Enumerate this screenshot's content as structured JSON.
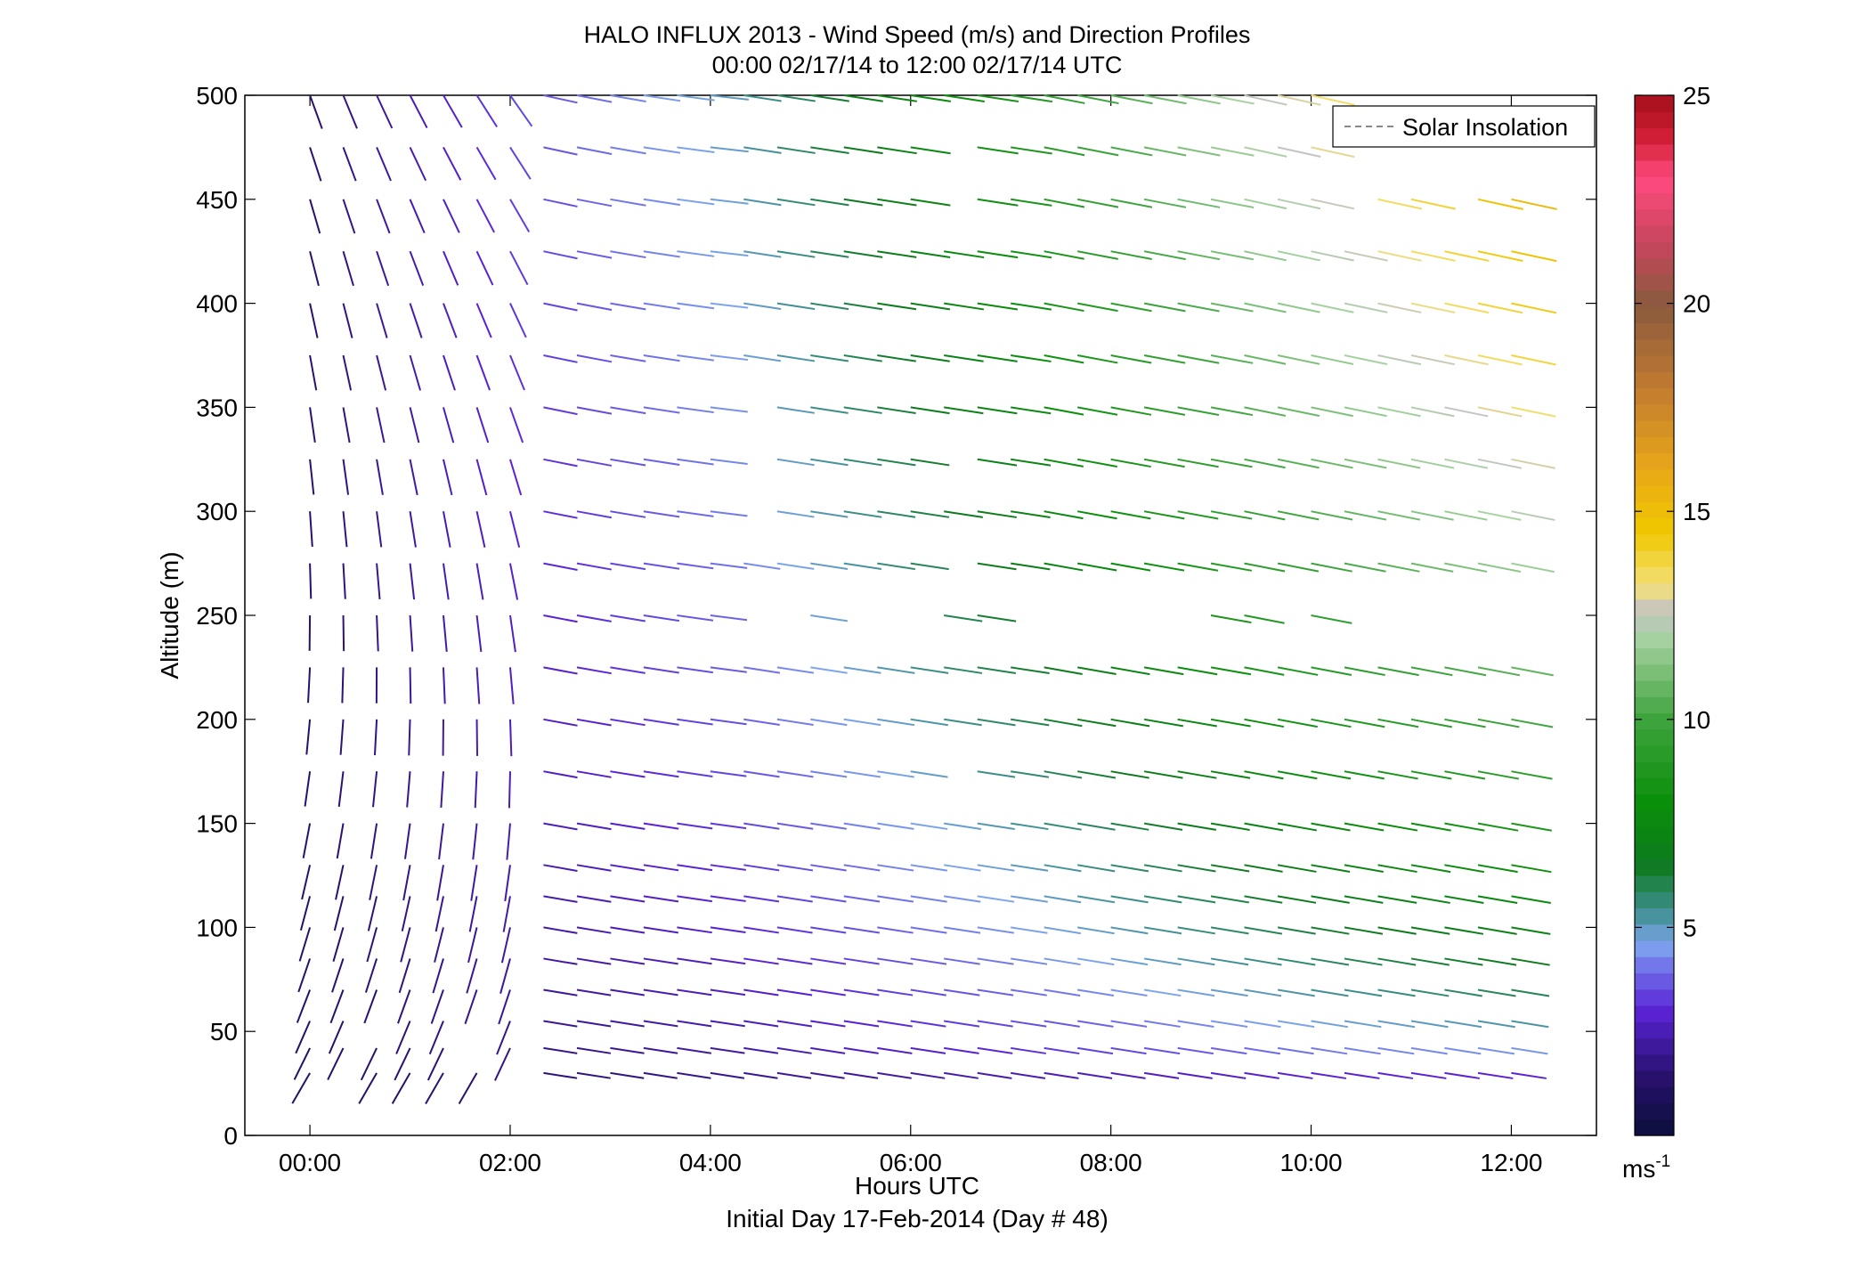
{
  "chart_data": {
    "type": "wind-barb-profile",
    "title": "HALO INFLUX 2013 - Wind Speed (m/s) and Direction Profiles",
    "subtitle": "00:00 02/17/14 to 12:00 02/17/14  UTC",
    "xlabel": "Hours UTC",
    "xlabel2": "Initial Day 17-Feb-2014 (Day # 48)",
    "ylabel": "Altitude (m)",
    "xlim": [
      -0.65,
      12.85
    ],
    "ylim": [
      0,
      500
    ],
    "x_ticks": [
      0,
      2,
      4,
      6,
      8,
      10,
      12
    ],
    "x_tick_labels": [
      "00:00",
      "02:00",
      "04:00",
      "06:00",
      "08:00",
      "10:00",
      "12:00"
    ],
    "y_ticks": [
      0,
      50,
      100,
      150,
      200,
      250,
      300,
      350,
      400,
      450,
      500
    ],
    "y_tick_labels": [
      "0",
      "50",
      "100",
      "150",
      "200",
      "250",
      "300",
      "350",
      "400",
      "450",
      "500"
    ],
    "legend": {
      "entries": [
        "Solar Insolation"
      ],
      "position": "top-right",
      "line_style": "dashed",
      "line_color": "#888888"
    },
    "colorbar": {
      "range": [
        0,
        25
      ],
      "ticks": [
        5,
        10,
        15,
        20,
        25
      ],
      "tick_labels": [
        "5",
        "10",
        "15",
        "20",
        "25"
      ],
      "unit_label": "ms",
      "unit_exponent": "-1",
      "stops": [
        {
          "v": 0,
          "c": "#0b0f3a"
        },
        {
          "v": 1.5,
          "c": "#2a1170"
        },
        {
          "v": 3,
          "c": "#5a23d6"
        },
        {
          "v": 4,
          "c": "#6f6fe8"
        },
        {
          "v": 4.6,
          "c": "#7fa6ee"
        },
        {
          "v": 5.4,
          "c": "#3f8f8f"
        },
        {
          "v": 6.5,
          "c": "#0e7a1e"
        },
        {
          "v": 8,
          "c": "#0a8f0a"
        },
        {
          "v": 10,
          "c": "#3ea43e"
        },
        {
          "v": 12,
          "c": "#a9d3a3"
        },
        {
          "v": 12.6,
          "c": "#c4c4c4"
        },
        {
          "v": 13.2,
          "c": "#f2e07a"
        },
        {
          "v": 14.5,
          "c": "#f0c800"
        },
        {
          "v": 16,
          "c": "#e8a818"
        },
        {
          "v": 18,
          "c": "#c07a30"
        },
        {
          "v": 20,
          "c": "#8a5a3e"
        },
        {
          "v": 21.5,
          "c": "#c9455e"
        },
        {
          "v": 23,
          "c": "#ff4b7e"
        },
        {
          "v": 24,
          "c": "#d01e36"
        },
        {
          "v": 25,
          "c": "#a30f1a"
        }
      ]
    },
    "times": [
      0,
      0.333,
      0.667,
      1.0,
      1.333,
      1.667,
      2.0,
      2.333,
      2.667,
      3.0,
      3.333,
      3.667,
      4.0,
      4.333,
      4.667,
      5.0,
      5.333,
      5.667,
      6.0,
      6.333,
      6.667,
      7.0,
      7.333,
      7.667,
      8.0,
      8.333,
      8.667,
      9.0,
      9.333,
      9.667,
      10.0,
      10.333,
      10.667,
      11.0,
      11.333,
      11.667,
      12.0
    ],
    "altitudes": [
      30,
      42,
      55,
      70,
      85,
      100,
      115,
      130,
      150,
      175,
      200,
      225,
      250,
      275,
      300,
      325,
      350,
      375,
      400,
      425,
      450,
      475,
      500
    ],
    "profile_time_ranges": [
      {
        "t0": 0.0,
        "t1": 2.0,
        "s0": 1.5,
        "s1": 3.5,
        "d0": 20,
        "d1": 35
      },
      {
        "t0": 2.0,
        "t1": 4.0,
        "s0": 3.5,
        "s1": 5.0,
        "d0": 60,
        "d1": 75
      },
      {
        "t0": 4.0,
        "t1": 7.0,
        "s0": 5.0,
        "s1": 9.0,
        "d0": 70,
        "d1": 70
      },
      {
        "t0": 7.0,
        "t1": 9.0,
        "s0": 9.0,
        "s1": 12.0,
        "d0": 65,
        "d1": 65
      },
      {
        "t0": 9.0,
        "t1": 12.0,
        "s0": 12.0,
        "s1": 16.0,
        "d0": 62,
        "d1": 62
      }
    ],
    "profile_notes": "Speed increases with altitude; low levels (30-115 m) remain 1-4 m/s through period; upper levels grow from ~3 m/s to ~16 m/s by 12:00.",
    "missing_points": [
      {
        "t": 4.333,
        "z": 250
      },
      {
        "t": 4.667,
        "z": 250
      },
      {
        "t": 5.333,
        "z": 250
      },
      {
        "t": 5.667,
        "z": 250
      },
      {
        "t": 6.0,
        "z": 250
      },
      {
        "t": 7.0,
        "z": 250
      },
      {
        "t": 7.333,
        "z": 250
      },
      {
        "t": 7.667,
        "z": 250
      },
      {
        "t": 8.0,
        "z": 250
      },
      {
        "t": 8.333,
        "z": 250
      },
      {
        "t": 8.667,
        "z": 250
      },
      {
        "t": 9.667,
        "z": 250
      },
      {
        "t": 10.333,
        "z": 250
      },
      {
        "t": 10.667,
        "z": 250
      },
      {
        "t": 11.0,
        "z": 250
      },
      {
        "t": 11.333,
        "z": 250
      },
      {
        "t": 11.667,
        "z": 250
      },
      {
        "t": 12.0,
        "z": 250
      },
      {
        "t": 10.333,
        "z": 500
      },
      {
        "t": 10.667,
        "z": 500
      },
      {
        "t": 11.0,
        "z": 500
      },
      {
        "t": 11.333,
        "z": 500
      },
      {
        "t": 11.667,
        "z": 500
      },
      {
        "t": 12.0,
        "z": 500
      },
      {
        "t": 10.333,
        "z": 475
      },
      {
        "t": 10.667,
        "z": 475
      },
      {
        "t": 11.0,
        "z": 475
      },
      {
        "t": 11.333,
        "z": 475
      },
      {
        "t": 11.667,
        "z": 475
      },
      {
        "t": 12.0,
        "z": 475
      },
      {
        "t": 6.333,
        "z": 475
      },
      {
        "t": 6.333,
        "z": 450
      },
      {
        "t": 4.333,
        "z": 350
      },
      {
        "t": 6.333,
        "z": 275
      },
      {
        "t": 6.333,
        "z": 325
      },
      {
        "t": 10.333,
        "z": 450
      },
      {
        "t": 11.333,
        "z": 450
      },
      {
        "t": 6.333,
        "z": 175
      },
      {
        "t": 4.333,
        "z": 300
      },
      {
        "t": 4.333,
        "z": 325
      },
      {
        "t": 0.667,
        "z": 55
      },
      {
        "t": 1.667,
        "z": 55
      },
      {
        "t": 1.667,
        "z": 42
      },
      {
        "t": 2.0,
        "z": 30
      },
      {
        "t": 0.333,
        "z": 30
      }
    ]
  }
}
